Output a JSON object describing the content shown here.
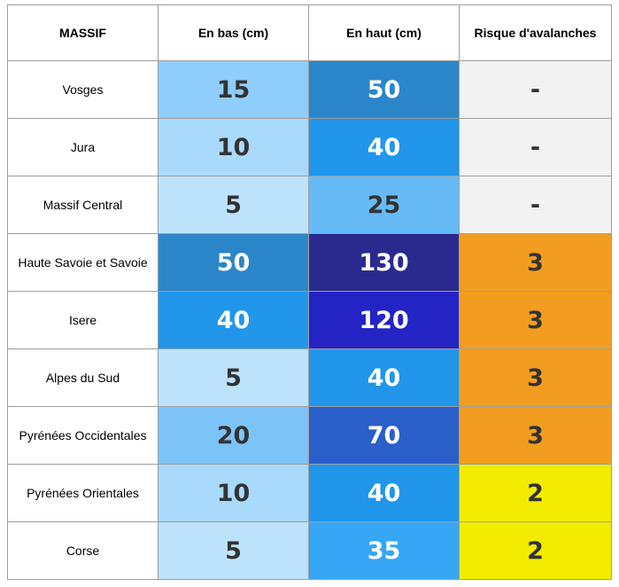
{
  "table": {
    "header": [
      "MASSIF",
      "En bas (cm)",
      "En haut (cm)",
      "Risque d'avalanches"
    ],
    "rows": [
      [
        "Vosges",
        15,
        50,
        "-"
      ],
      [
        "Jura",
        10,
        40,
        "-"
      ],
      [
        "Massif Central",
        5,
        25,
        "-"
      ],
      [
        "Haute Savoie et Savoie",
        50,
        130,
        3
      ],
      [
        "Isere",
        40,
        120,
        3
      ],
      [
        "Alpes du Sud",
        5,
        40,
        3
      ],
      [
        "Pyrénées Occidentales",
        20,
        70,
        3
      ],
      [
        "Pyrénées Orientales",
        10,
        40,
        2
      ],
      [
        "Corse",
        5,
        35,
        2
      ]
    ],
    "cell_colors": [
      [
        "#ffffff",
        "#8ecdfc",
        "#2b86c9",
        "#f2f2f2"
      ],
      [
        "#ffffff",
        "#a9d9fb",
        "#2196eb",
        "#f2f2f2"
      ],
      [
        "#ffffff",
        "#bde3fc",
        "#66bbf7",
        "#f2f2f2"
      ],
      [
        "#ffffff",
        "#2b86c9",
        "#2a2a8e",
        "#f29d1f"
      ],
      [
        "#ffffff",
        "#2196eb",
        "#2424c4",
        "#f29d1f"
      ],
      [
        "#ffffff",
        "#bde3fc",
        "#2196eb",
        "#f29d1f"
      ],
      [
        "#ffffff",
        "#7cc3f8",
        "#2b5fc9",
        "#f29d1f"
      ],
      [
        "#ffffff",
        "#a9d9fb",
        "#2196eb",
        "#f2ec00"
      ],
      [
        "#ffffff",
        "#bde3fc",
        "#36a6f5",
        "#f2ec00"
      ]
    ]
  }
}
